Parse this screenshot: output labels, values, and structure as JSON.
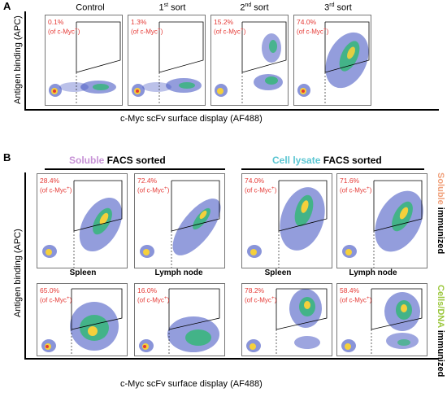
{
  "panel_a": {
    "letter": "A",
    "y_axis_label": "Antigen binding (APC)",
    "x_axis_label": "c-Myc scFv surface display (AF488)",
    "columns": [
      {
        "title_main": "Control",
        "title_sup": "",
        "title_rest": "",
        "percent": "0.1%",
        "of": "(of c-Myc",
        "of_sup": "+",
        "of_end": ")"
      },
      {
        "title_main": "1",
        "title_sup": "st",
        "title_rest": " sort",
        "percent": "1.3%",
        "of": "(of c-Myc",
        "of_sup": "+",
        "of_end": ")"
      },
      {
        "title_main": "2",
        "title_sup": "nd",
        "title_rest": " sort",
        "percent": "15.2%",
        "of": "(of c-Myc",
        "of_sup": "+",
        "of_end": ")"
      },
      {
        "title_main": "3",
        "title_sup": "rd",
        "title_rest": " sort",
        "percent": "74.0%",
        "of": "(of c-Myc",
        "of_sup": "+",
        "of_end": ")"
      }
    ]
  },
  "panel_b": {
    "letter": "B",
    "y_axis_label": "Antigen binding (APC)",
    "x_axis_label": "c-Myc scFv surface display (AF488)",
    "group_left": {
      "colored": "Soluble",
      "rest": " FACS sorted"
    },
    "group_right": {
      "colored": "Cell lysate",
      "rest": " FACS sorted"
    },
    "row_top_label": {
      "colored": "Soluble",
      "rest": " immunized"
    },
    "row_bottom_label": {
      "colored": "Cells/DNA",
      "rest": " immunized"
    },
    "tissues": [
      "Spleen",
      "Lymph node",
      "Spleen",
      "Lymph node"
    ],
    "row_top": [
      {
        "percent": "28.4%",
        "of": "(of c-Myc",
        "of_sup": "+",
        "of_end": ")"
      },
      {
        "percent": "72.4%",
        "of": "(of c-Myc",
        "of_sup": "+",
        "of_end": ")"
      },
      {
        "percent": "74.0%",
        "of": "(of c-Myc",
        "of_sup": "+",
        "of_end": ")"
      },
      {
        "percent": "71.6%",
        "of": "(of c-Myc",
        "of_sup": "+",
        "of_end": ")"
      }
    ],
    "row_bottom": [
      {
        "percent": "65.0%",
        "of": "(of c-Myc",
        "of_sup": "+",
        "of_end": ")"
      },
      {
        "percent": "16.0%",
        "of": "(of c-Myc",
        "of_sup": "+",
        "of_end": ")"
      },
      {
        "percent": "78.2%",
        "of": "(of c-Myc",
        "of_sup": "+",
        "of_end": ")"
      },
      {
        "percent": "58.4%",
        "of": "(of c-Myc",
        "of_sup": "+",
        "of_end": ")"
      }
    ]
  },
  "colors": {
    "percent_text": "#e53935",
    "soluble": "#c792d6",
    "cell_lysate": "#5bc6d2",
    "soluble_immunized": "#f0a07a",
    "cells_dna": "#9bc73c"
  }
}
